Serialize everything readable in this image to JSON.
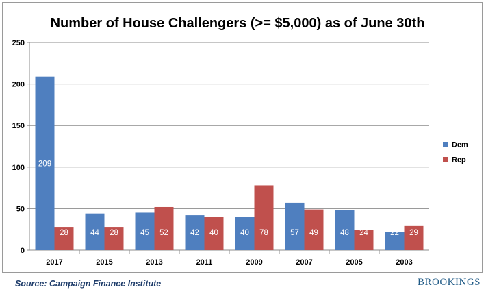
{
  "chart_data": {
    "type": "bar",
    "title": "Number of House Challengers (>= $5,000)  as of June 30th",
    "categories": [
      "2017",
      "2015",
      "2013",
      "2011",
      "2009",
      "2007",
      "2005",
      "2003"
    ],
    "series": [
      {
        "name": "Dem",
        "values": [
          209,
          44,
          45,
          42,
          40,
          57,
          48,
          22
        ],
        "color": "#4f7fbf"
      },
      {
        "name": "Rep",
        "values": [
          28,
          28,
          52,
          40,
          78,
          49,
          24,
          29
        ],
        "color": "#c0504d"
      }
    ],
    "ylim": [
      0,
      250
    ],
    "yticks": [
      0,
      50,
      100,
      150,
      200,
      250
    ],
    "xlabel": "",
    "ylabel": "",
    "grid": true,
    "legend_position": "right",
    "data_labels": true
  },
  "footer": {
    "source": "Source: Campaign Finance Institute",
    "brand": "BROOKINGS"
  }
}
